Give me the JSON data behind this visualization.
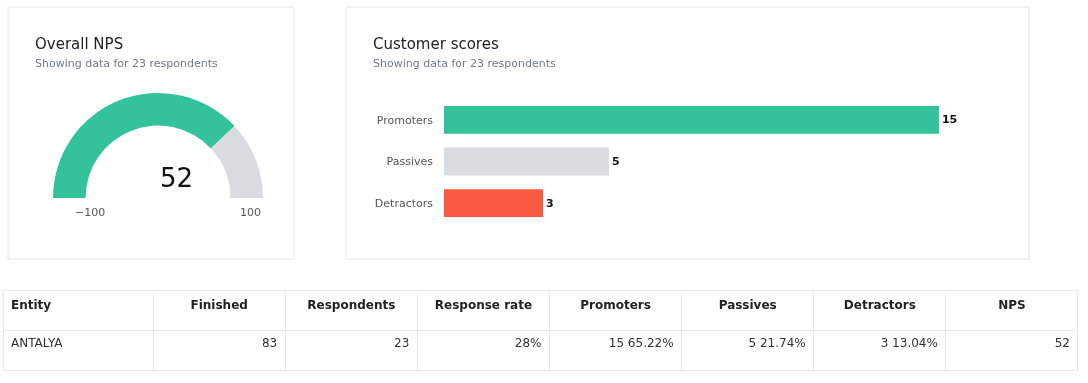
{
  "chart_data": [
    {
      "type": "donut",
      "title": "Overall NPS",
      "subtitle": "Showing data for 23 respondents",
      "categories": [
        null,
        null
      ],
      "values": [
        76,
        24
      ],
      "colors": [
        "#33c29c",
        "#d8dce0"
      ],
      "annotations": [
        "52",
        "−100",
        "100"
      ]
    },
    {
      "type": "bar",
      "orientation": "horizontal",
      "title": "Customer scores",
      "subtitle": "Showing data for 23 respondents",
      "categories": [
        "Promoters",
        "Passives",
        "Detractors"
      ],
      "values": [
        15,
        5,
        3
      ],
      "colors": [
        "#33c29c",
        "#d8dce0",
        "#fa5a41"
      ],
      "data_labels": true
    },
    {
      "type": "other",
      "categories": [
        "Entity",
        "Finished",
        "Respondents",
        "Response rate",
        "Promoters",
        "Passives",
        "Detractors",
        "NPS"
      ],
      "cell_labels": [
        [
          "ANTALYA",
          "83",
          "23",
          "28%",
          "15 65.22%",
          "5 21.74%",
          "3 13.04%",
          "52"
        ]
      ]
    }
  ]
}
